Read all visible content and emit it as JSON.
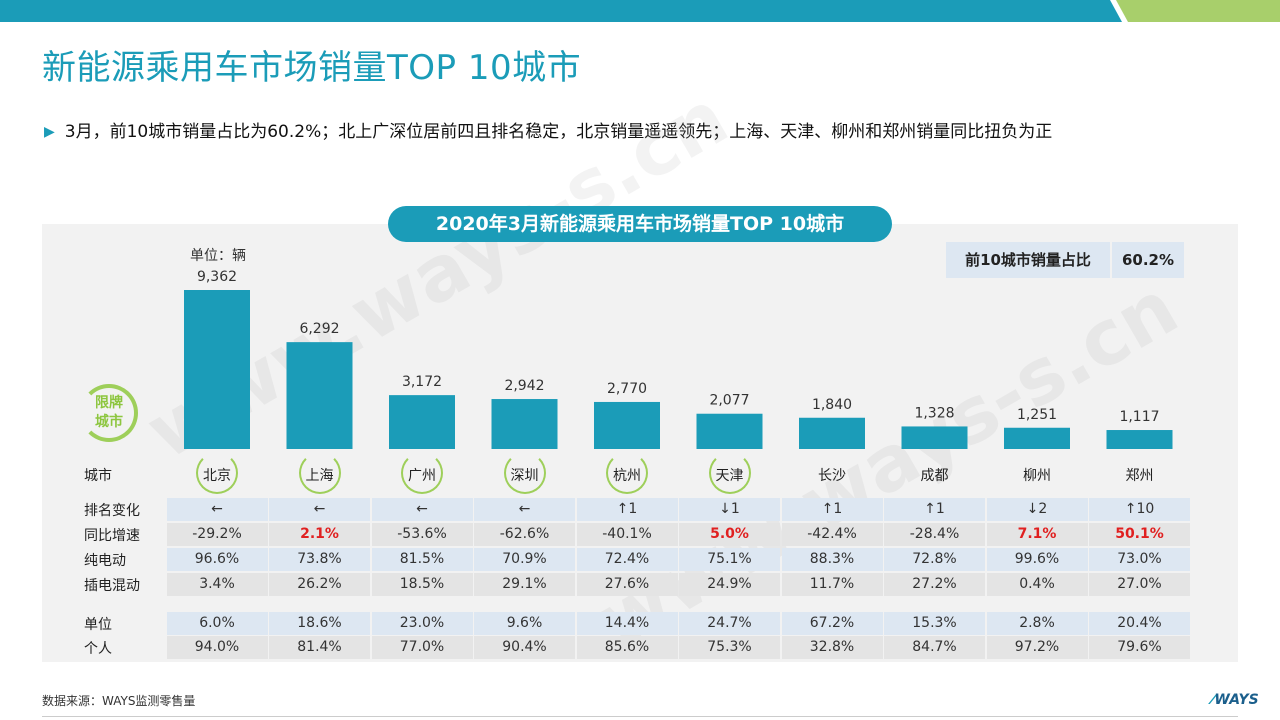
{
  "header": {
    "title": "新能源乘用车市场销量TOP 10城市",
    "bullet": "3月，前10城市销量占比为60.2%；北上广深位居前四且排名稳定，北京销量遥遥领先；上海、天津、柳州和郑州销量同比扭负为正"
  },
  "watermark": "www.ways-s.cn",
  "colors": {
    "accent": "#1b9cb8",
    "green": "#9ecf5a",
    "negative_red": "#e02020",
    "row_blue": "#dde7f2",
    "row_gray": "#e4e4e4"
  },
  "chart_data": {
    "type": "bar",
    "title": "2020年3月新能源乘用车市场销量TOP 10城市",
    "unit_label": "单位：辆",
    "categories": [
      "北京",
      "上海",
      "广州",
      "深圳",
      "杭州",
      "天津",
      "长沙",
      "成都",
      "柳州",
      "郑州"
    ],
    "values": [
      9362,
      6292,
      3172,
      2942,
      2770,
      2077,
      1840,
      1328,
      1251,
      1117
    ],
    "value_labels": [
      "9,362",
      "6,292",
      "3,172",
      "2,942",
      "2,770",
      "2,077",
      "1,840",
      "1,328",
      "1,251",
      "1,117"
    ],
    "bar_color": "#1b9cb8",
    "limited_cities": [
      "北京",
      "上海",
      "广州",
      "深圳",
      "杭州",
      "天津"
    ],
    "limited_badge": "限牌城市",
    "city_row_label": "城市",
    "share": {
      "label": "前10城市销量占比",
      "value": "60.2%"
    },
    "table": {
      "rows": [
        {
          "label": "排名变化",
          "values": [
            "←",
            "←",
            "←",
            "←",
            "↑1",
            "↓1",
            "↑1",
            "↑1",
            "↓2",
            "↑10"
          ],
          "style": "blue"
        },
        {
          "label": "同比增速",
          "values": [
            "-29.2%",
            "2.1%",
            "-53.6%",
            "-62.6%",
            "-40.1%",
            "5.0%",
            "-42.4%",
            "-28.4%",
            "7.1%",
            "50.1%"
          ],
          "highlight": [
            false,
            true,
            false,
            false,
            false,
            true,
            false,
            false,
            true,
            true
          ],
          "style": "gray"
        },
        {
          "label": "纯电动",
          "values": [
            "96.6%",
            "73.8%",
            "81.5%",
            "70.9%",
            "72.4%",
            "75.1%",
            "88.3%",
            "72.8%",
            "99.6%",
            "73.0%"
          ],
          "style": "blue"
        },
        {
          "label": "插电混动",
          "values": [
            "3.4%",
            "26.2%",
            "18.5%",
            "29.1%",
            "27.6%",
            "24.9%",
            "11.7%",
            "27.2%",
            "0.4%",
            "27.0%"
          ],
          "style": "gray"
        },
        {
          "label": "单位",
          "values": [
            "6.0%",
            "18.6%",
            "23.0%",
            "9.6%",
            "14.4%",
            "24.7%",
            "67.2%",
            "15.3%",
            "2.8%",
            "20.4%"
          ],
          "style": "blue"
        },
        {
          "label": "个人",
          "values": [
            "94.0%",
            "81.4%",
            "77.0%",
            "90.4%",
            "85.6%",
            "75.3%",
            "32.8%",
            "84.7%",
            "97.2%",
            "79.6%"
          ],
          "style": "gray"
        }
      ]
    }
  },
  "footer": {
    "source": "数据来源：WAYS监测零售量",
    "logo": "WAYS"
  }
}
